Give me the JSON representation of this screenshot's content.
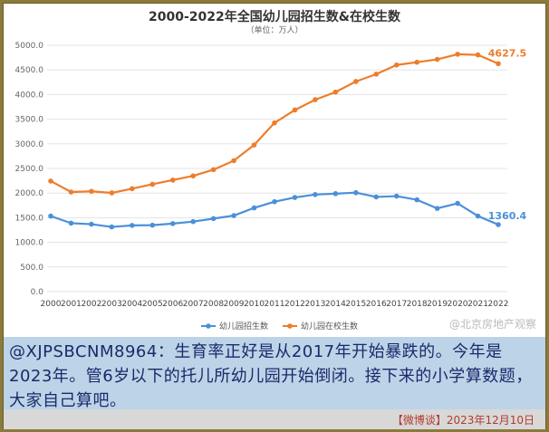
{
  "chart_data": {
    "type": "line",
    "title": "2000-2022年全国幼儿园招生数&在校生数",
    "subtitle": "（单位：万人）",
    "categories": [
      "2000",
      "2001",
      "2002",
      "2003",
      "2004",
      "2005",
      "2006",
      "2007",
      "2008",
      "2009",
      "2010",
      "2011",
      "2012",
      "2013",
      "2014",
      "2015",
      "2016",
      "2017",
      "2018",
      "2019",
      "2020",
      "2021",
      "2022"
    ],
    "ylim": [
      0,
      5000
    ],
    "yticks": [
      "0.0",
      "500.0",
      "1000.0",
      "1500.0",
      "2000.0",
      "2500.0",
      "3000.0",
      "3500.0",
      "4000.0",
      "4500.0",
      "5000.0"
    ],
    "grid": true,
    "legend_position": "bottom",
    "series": [
      {
        "name": "幼儿园招生数",
        "color": "#4a90d9",
        "values": [
          1533,
          1390,
          1368,
          1313,
          1344,
          1349,
          1381,
          1421,
          1482,
          1543,
          1700,
          1825,
          1911,
          1970,
          1988,
          2009,
          1922,
          1938,
          1864,
          1689,
          1791,
          1534,
          1360.4
        ],
        "end_label": "1360.4"
      },
      {
        "name": "幼儿园在校生数",
        "color": "#ee7d2b",
        "values": [
          2244,
          2022,
          2036,
          2004,
          2089,
          2179,
          2264,
          2349,
          2475,
          2658,
          2977,
          3425,
          3686,
          3895,
          4051,
          4265,
          4414,
          4600,
          4656,
          4714,
          4818,
          4805,
          4627.5
        ],
        "end_label": "4627.5"
      }
    ]
  },
  "watermark": "@北京房地产观察",
  "caption": "@XJPSBCNM8964：生育率正好是从2017年开始暴跌的。今年是2023年。管6岁以下的托儿所幼儿园开始倒闭。接下来的小学算数题，大家自己算吧。",
  "footer": "【微博谈】2023年12月10日"
}
